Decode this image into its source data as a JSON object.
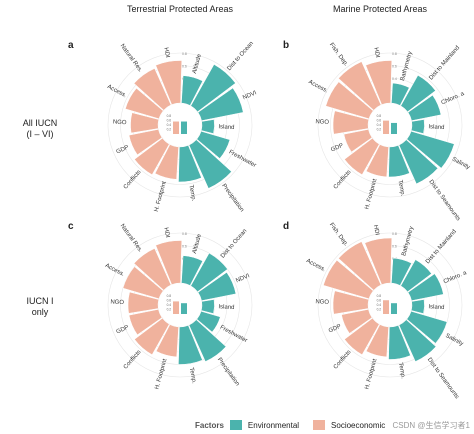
{
  "figure": {
    "col_titles": [
      "Terrestrial Protected Areas",
      "Marine Protected Areas"
    ],
    "row_labels": [
      [
        "All IUCN",
        "(I – VI)"
      ],
      [
        "IUCN I",
        "only"
      ]
    ],
    "legend": {
      "title": "Factors",
      "items": [
        {
          "label": "Environmental",
          "color": "#4bb3ad"
        },
        {
          "label": "Socioeconomic",
          "color": "#f0b29d"
        }
      ]
    },
    "watermark": "CSDN @生信学习者1",
    "ring_ticks": [
      "0.2",
      "0.4",
      "0.6",
      "0.8"
    ],
    "inner_ticks": [
      "0.2",
      "0.4",
      "0.6",
      "0.8"
    ]
  },
  "chart_data": [
    {
      "type": "polar-bar",
      "panel": "a",
      "categories": [
        "Altitude",
        "Dist to Ocean",
        "NDVI",
        "Island",
        "Freshwater",
        "Precipitation",
        "Temp.",
        "H. Footprint",
        "Conflicts",
        "GDP",
        "NGO",
        "Access.",
        "Natural Res.",
        "HDI"
      ],
      "factor": [
        "Environmental",
        "Environmental",
        "Environmental",
        "Environmental",
        "Environmental",
        "Environmental",
        "Environmental",
        "Socioeconomic",
        "Socioeconomic",
        "Socioeconomic",
        "Socioeconomic",
        "Socioeconomic",
        "Socioeconomic",
        "Socioeconomic"
      ],
      "values": [
        0.55,
        0.95,
        0.85,
        0.25,
        0.6,
        0.95,
        0.7,
        0.65,
        0.7,
        0.6,
        0.55,
        0.7,
        0.8,
        0.85
      ]
    },
    {
      "type": "polar-bar",
      "panel": "b",
      "categories": [
        "Bathymetry",
        "Dist to Mainland",
        "Chloro. a",
        "Island",
        "Salinity",
        "Dist to Seamounts",
        "Temp.",
        "H. Footprint",
        "Conflicts",
        "GDP",
        "NGO",
        "Access.",
        "Fish. Dep.",
        "HDI"
      ],
      "factor": [
        "Environmental",
        "Environmental",
        "Environmental",
        "Environmental",
        "Environmental",
        "Environmental",
        "Environmental",
        "Socioeconomic",
        "Socioeconomic",
        "Socioeconomic",
        "Socioeconomic",
        "Socioeconomic",
        "Socioeconomic",
        "Socioeconomic"
      ],
      "values": [
        0.4,
        0.7,
        0.6,
        0.25,
        0.9,
        0.85,
        0.6,
        0.6,
        0.7,
        0.5,
        0.7,
        0.9,
        0.95,
        0.85
      ]
    },
    {
      "type": "polar-bar",
      "panel": "c",
      "categories": [
        "Altitude",
        "Dist to Ocean",
        "NDVI",
        "Island",
        "Freshwater",
        "Precipitation",
        "Temp.",
        "H. Footprint",
        "Conflicts",
        "GDP",
        "NGO",
        "Access.",
        "Natural Res.",
        "HDI"
      ],
      "factor": [
        "Environmental",
        "Environmental",
        "Environmental",
        "Environmental",
        "Environmental",
        "Environmental",
        "Environmental",
        "Socioeconomic",
        "Socioeconomic",
        "Socioeconomic",
        "Socioeconomic",
        "Socioeconomic",
        "Socioeconomic",
        "Socioeconomic"
      ],
      "values": [
        0.55,
        0.75,
        0.7,
        0.25,
        0.4,
        0.8,
        0.75,
        0.6,
        0.7,
        0.6,
        0.6,
        0.75,
        0.8,
        0.85
      ]
    },
    {
      "type": "polar-bar",
      "panel": "d",
      "categories": [
        "Bathymetry",
        "Dist to Mainland",
        "Chloro. a",
        "Island",
        "Salinity",
        "Dist to Seamounts",
        "Temp.",
        "H. Footprint",
        "Conflicts",
        "GDP",
        "NGO",
        "Access.",
        "Fish. Dep.",
        "HDI"
      ],
      "factor": [
        "Environmental",
        "Environmental",
        "Environmental",
        "Environmental",
        "Environmental",
        "Environmental",
        "Environmental",
        "Socioeconomic",
        "Socioeconomic",
        "Socioeconomic",
        "Socioeconomic",
        "Socioeconomic",
        "Socioeconomic",
        "Socioeconomic"
      ],
      "values": [
        0.5,
        0.6,
        0.65,
        0.25,
        0.75,
        0.8,
        0.65,
        0.6,
        0.7,
        0.55,
        0.7,
        0.95,
        0.95,
        0.9
      ]
    }
  ]
}
